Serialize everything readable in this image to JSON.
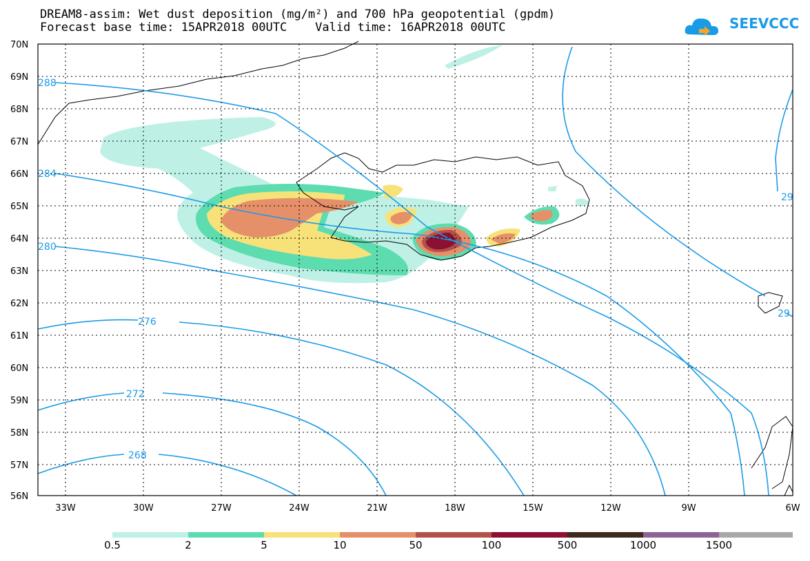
{
  "header": {
    "title_line1": "DREAM8-assim: Wet dust deposition (mg/m²) and 700 hPa geopotential (gpdm)",
    "title_line2": "Forecast base time: 15APR2018 00UTC    Valid time: 16APR2018 00UTC"
  },
  "logo": {
    "text": "SEEVCCC",
    "icon": "cloud-logo-icon"
  },
  "map": {
    "lat_labels": [
      "70N",
      "69N",
      "68N",
      "67N",
      "66N",
      "65N",
      "64N",
      "63N",
      "62N",
      "61N",
      "60N",
      "59N",
      "58N",
      "57N",
      "56N"
    ],
    "lon_labels": [
      "33W",
      "30W",
      "27W",
      "24W",
      "21W",
      "18W",
      "15W",
      "12W",
      "9W",
      "6W"
    ],
    "contour_labels": [
      "288",
      "284",
      "280",
      "276",
      "272",
      "268",
      "29",
      "29"
    ],
    "colors": {
      "contour": "#1a9be6",
      "land_outline": "#000000"
    }
  },
  "colorbar": {
    "labels": [
      "0.5",
      "2",
      "5",
      "10",
      "50",
      "100",
      "500",
      "1000",
      "1500"
    ],
    "colors": [
      "#bff0e6",
      "#5ddcb0",
      "#f7e27a",
      "#e6906a",
      "#b4504a",
      "#8c1032",
      "#3c2a1e",
      "#8c6496",
      "#a8a8a8"
    ]
  }
}
